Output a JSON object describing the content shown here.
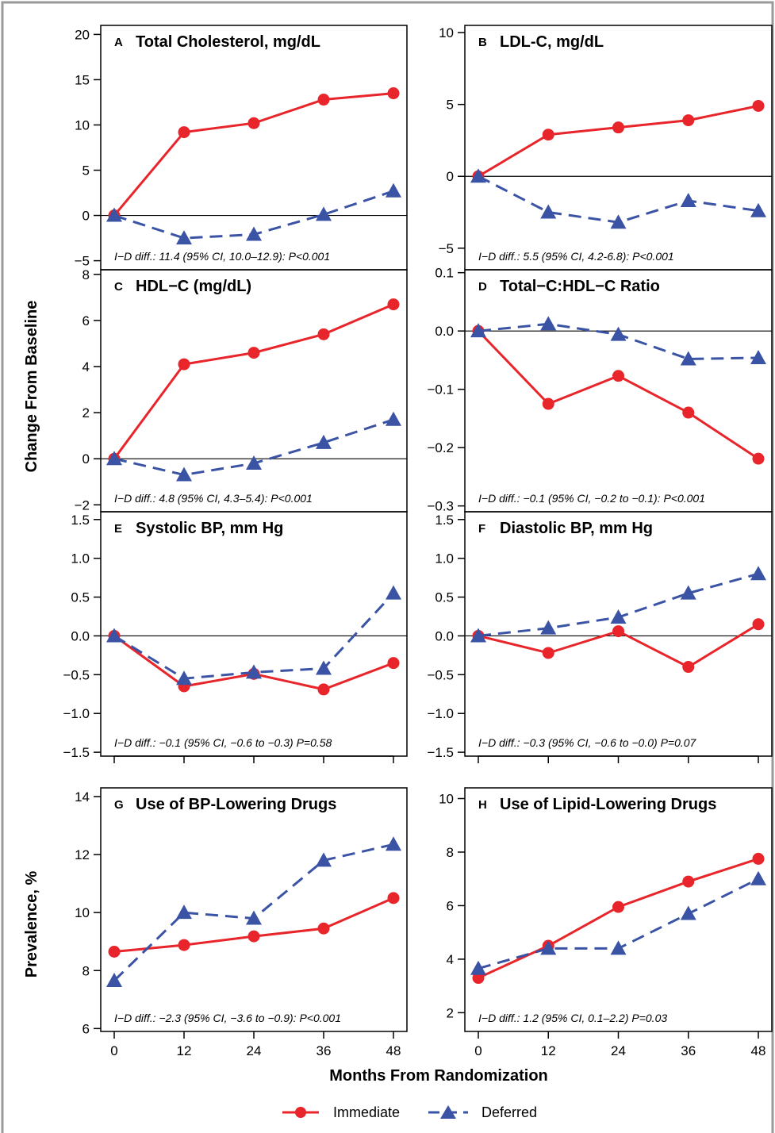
{
  "chart_data": {
    "type": "line",
    "x": [
      0,
      12,
      24,
      36,
      48
    ],
    "xlabel": "Months From Randomization",
    "colors": {
      "Immediate": "#e8252a",
      "Deferred": "#3a53a4"
    },
    "legend": {
      "position": "bottom",
      "entries": [
        "Immediate",
        "Deferred"
      ]
    },
    "y_axis_titles": [
      {
        "text": "Change From Baseline",
        "panels": [
          "A",
          "B",
          "C",
          "D",
          "E",
          "F"
        ]
      },
      {
        "text": "Prevalence, %",
        "panels": [
          "G",
          "H"
        ]
      }
    ],
    "panels": [
      {
        "letter": "A",
        "title": "Total Cholesterol, mg/dL",
        "ylim": [
          -6,
          21
        ],
        "yticks": [
          -5,
          0,
          5,
          10,
          15,
          20
        ],
        "zero_line": true,
        "annotation": "I−D diff.: 11.4 (95% CI, 10.0–12.9): P<0.001",
        "series": [
          {
            "name": "Immediate",
            "values": [
              0,
              9.2,
              10.2,
              12.8,
              13.5
            ]
          },
          {
            "name": "Deferred",
            "values": [
              0,
              -2.5,
              -2.1,
              0.1,
              2.7
            ]
          }
        ]
      },
      {
        "letter": "B",
        "title": "LDL-C, mg/dL",
        "ylim": [
          -6.5,
          10.5
        ],
        "yticks": [
          -5,
          0,
          5,
          10
        ],
        "zero_line": true,
        "annotation": "I−D diff.: 5.5 (95% CI, 4.2-6.8): P<0.001",
        "series": [
          {
            "name": "Immediate",
            "values": [
              0,
              2.9,
              3.4,
              3.9,
              4.9
            ]
          },
          {
            "name": "Deferred",
            "values": [
              0,
              -2.5,
              -3.2,
              -1.7,
              -2.4
            ]
          }
        ]
      },
      {
        "letter": "C",
        "title": "HDL−C (mg/dL)",
        "ylim": [
          -2.3,
          8.2
        ],
        "yticks": [
          -2,
          0,
          2,
          4,
          6,
          8
        ],
        "zero_line": true,
        "annotation": "I−D diff.: 4.8 (95% CI, 4.3–5.4): P<0.001",
        "series": [
          {
            "name": "Immediate",
            "values": [
              0,
              4.1,
              4.6,
              5.4,
              6.7
            ]
          },
          {
            "name": "Deferred",
            "values": [
              0,
              -0.7,
              -0.2,
              0.7,
              1.7
            ]
          }
        ]
      },
      {
        "letter": "D",
        "title": "Total−C:HDL−C Ratio",
        "ylim": [
          -0.31,
          0.105
        ],
        "yticks": [
          -0.3,
          -0.2,
          -0.1,
          0.0,
          0.1
        ],
        "zero_line": true,
        "annotation": "I−D diff.: −0.1 (95% CI, −0.2 to −0.1): P<0.001",
        "series": [
          {
            "name": "Immediate",
            "values": [
              0,
              -0.125,
              -0.077,
              -0.14,
              -0.219
            ]
          },
          {
            "name": "Deferred",
            "values": [
              0,
              0.012,
              -0.006,
              -0.048,
              -0.046
            ]
          }
        ]
      },
      {
        "letter": "E",
        "title": "Systolic BP, mm Hg",
        "ylim": [
          -1.55,
          1.6
        ],
        "yticks": [
          -1.5,
          -1.0,
          -0.5,
          0.0,
          0.5,
          1.0,
          1.5
        ],
        "zero_line": true,
        "annotation": "I−D diff.: −0.1 (95% CI, −0.6 to −0.3) P=0.58",
        "series": [
          {
            "name": "Immediate",
            "values": [
              0,
              -0.65,
              -0.49,
              -0.69,
              -0.35
            ]
          },
          {
            "name": "Deferred",
            "values": [
              0,
              -0.55,
              -0.47,
              -0.42,
              0.55
            ]
          }
        ]
      },
      {
        "letter": "F",
        "title": "Diastolic BP, mm Hg",
        "ylim": [
          -1.55,
          1.6
        ],
        "yticks": [
          -1.5,
          -1.0,
          -0.5,
          0.0,
          0.5,
          1.0,
          1.5
        ],
        "zero_line": true,
        "annotation": "I−D diff.: −0.3 (95% CI, −0.6 to −0.0) P=0.07",
        "series": [
          {
            "name": "Immediate",
            "values": [
              0,
              -0.22,
              0.06,
              -0.4,
              0.15
            ]
          },
          {
            "name": "Deferred",
            "values": [
              0,
              0.1,
              0.24,
              0.55,
              0.8
            ]
          }
        ]
      },
      {
        "letter": "G",
        "title": "Use of BP-Lowering Drugs",
        "ylim": [
          5.9,
          14.3
        ],
        "yticks": [
          6,
          8,
          10,
          12,
          14
        ],
        "zero_line": false,
        "annotation": "I−D diff.: −2.3 (95% CI, −3.6 to −0.9): P<0.001",
        "series": [
          {
            "name": "Immediate",
            "values": [
              8.65,
              8.88,
              9.18,
              9.45,
              10.5
            ]
          },
          {
            "name": "Deferred",
            "values": [
              7.65,
              10.0,
              9.8,
              11.8,
              12.35
            ]
          }
        ]
      },
      {
        "letter": "H",
        "title": "Use of Lipid-Lowering Drugs",
        "ylim": [
          1.3,
          10.4
        ],
        "yticks": [
          2,
          4,
          6,
          8,
          10
        ],
        "zero_line": false,
        "annotation": "I−D diff.: 1.2 (95% CI, 0.1–2.2) P=0.03",
        "series": [
          {
            "name": "Immediate",
            "values": [
              3.3,
              4.5,
              5.95,
              6.9,
              7.75
            ]
          },
          {
            "name": "Deferred",
            "values": [
              3.65,
              4.4,
              4.4,
              5.7,
              7.0
            ]
          }
        ]
      }
    ]
  }
}
